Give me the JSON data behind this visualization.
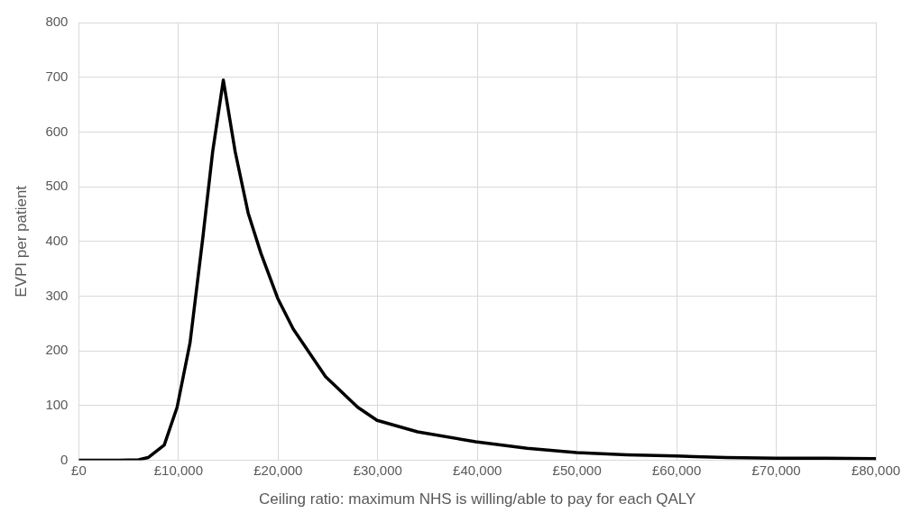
{
  "chart_data": {
    "type": "line",
    "xlabel": "Ceiling ratio: maximum NHS is willing/able to pay for each QALY",
    "ylabel": "EVPI per patient",
    "x": [
      0,
      2000,
      4000,
      6000,
      6950,
      8570,
      9860,
      11160,
      12450,
      13430,
      14500,
      15690,
      16990,
      18280,
      19960,
      21520,
      24760,
      27990,
      29930,
      34000,
      39830,
      45000,
      49960,
      55000,
      59930,
      65000,
      70030,
      75000,
      80000
    ],
    "series": [
      {
        "color": "#000000",
        "values": [
          0,
          0,
          0,
          1,
          5,
          28,
          97,
          215,
          408,
          564,
          695,
          564,
          452,
          378,
          296,
          240,
          153,
          97,
          73,
          52,
          34,
          22,
          14,
          10,
          8,
          5,
          4,
          4,
          3
        ]
      }
    ],
    "xlim": [
      0,
      80000
    ],
    "xticks": [
      {
        "value": 0,
        "label": "£0"
      },
      {
        "value": 10000,
        "label": "£10,000"
      },
      {
        "value": 20000,
        "label": "£20,000"
      },
      {
        "value": 30000,
        "label": "£30,000"
      },
      {
        "value": 40000,
        "label": "£40,000"
      },
      {
        "value": 50000,
        "label": "£50,000"
      },
      {
        "value": 60000,
        "label": "£60,000"
      },
      {
        "value": 70000,
        "label": "£70,000"
      },
      {
        "value": 80000,
        "label": "£80,000"
      }
    ],
    "ylim": [
      0,
      800
    ],
    "yticks": [
      0,
      100,
      200,
      300,
      400,
      500,
      600,
      700,
      800
    ],
    "grid": true,
    "legend": false,
    "marker": "none",
    "line_style": "solid"
  }
}
